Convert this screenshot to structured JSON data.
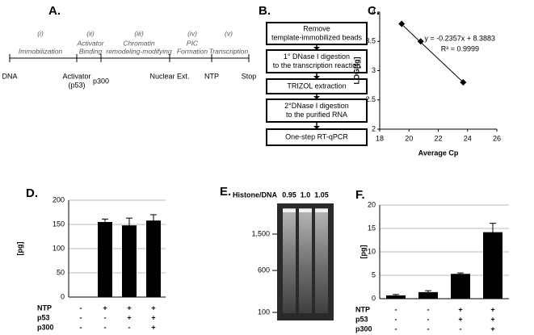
{
  "panel_a": {
    "label": "A.",
    "stages": [
      {
        "numeral": "(i)",
        "lines": [
          "Immobilization"
        ]
      },
      {
        "numeral": "(ii)",
        "lines": [
          "Activator",
          "Binding"
        ]
      },
      {
        "numeral": "(iii)",
        "lines": [
          "Chromatin",
          "remodeling-modifying"
        ]
      },
      {
        "numeral": "(iv)",
        "lines": [
          "PIC",
          "Formation"
        ]
      },
      {
        "numeral": "(v)",
        "lines": [
          "Transcription"
        ]
      }
    ],
    "steps": [
      [
        "DNA"
      ],
      [
        "Activator",
        "(p53)"
      ],
      [
        "p300"
      ],
      [
        "Nuclear Ext."
      ],
      [
        "NTP"
      ],
      [
        "Stop"
      ]
    ]
  },
  "panel_b": {
    "label": "B.",
    "boxes": [
      [
        "Remove",
        "template-immobilized beads"
      ],
      [
        "1° DNase I digestion",
        "to the transcription reaction"
      ],
      [
        "TRIZOL extraction"
      ],
      [
        "2°DNase I digestion",
        "to the purified RNA"
      ],
      [
        "One-step RT-qPCR"
      ]
    ]
  },
  "panel_e": {
    "label": "E.",
    "header": "Histone/DNA",
    "lanes": [
      "0.95",
      "1.0",
      "1.05"
    ],
    "markers": [
      "1,500",
      "600",
      "100"
    ]
  },
  "chart_data": [
    {
      "type": "scatter",
      "label": "C.",
      "x": [
        19.5,
        20.8,
        23.7
      ],
      "values": [
        3.8,
        3.5,
        2.8
      ],
      "xlim": [
        18,
        26
      ],
      "xticks": [
        18,
        20,
        22,
        24,
        26
      ],
      "ylim": [
        2,
        4
      ],
      "yticks": [
        2,
        2.5,
        3,
        3.5,
        4
      ],
      "x_label": "Average Cp",
      "y_label": "LOG[fg]",
      "fit": {
        "slope": -0.2357,
        "intercept": 8.3883
      },
      "equation": "y = -0.2357x + 8.3883",
      "r_squared": "R² = 0.9999",
      "color": "#000000"
    },
    {
      "type": "bar",
      "label": "D.",
      "values": [
        0,
        155,
        148,
        158
      ],
      "errors": [
        0,
        6,
        15,
        12
      ],
      "ylim": [
        0,
        200
      ],
      "yticks": [
        0,
        50,
        100,
        150,
        200
      ],
      "y_label": "[pg]",
      "color": "#000000",
      "grid": true,
      "conditions": [
        {
          "name": "NTP",
          "signs": [
            "-",
            "+",
            "+",
            "+"
          ]
        },
        {
          "name": "p53",
          "signs": [
            "-",
            "-",
            "+",
            "+"
          ]
        },
        {
          "name": "p300",
          "signs": [
            "-",
            "-",
            "-",
            "+"
          ]
        }
      ]
    },
    {
      "type": "bar",
      "label": "F.",
      "values": [
        0.7,
        1.4,
        5.3,
        14.2
      ],
      "errors": [
        0.2,
        0.3,
        0.2,
        1.9
      ],
      "ylim": [
        0,
        20
      ],
      "yticks": [
        0,
        5,
        10,
        15,
        20
      ],
      "y_label": "[pg]",
      "color": "#000000",
      "grid": true,
      "conditions": [
        {
          "name": "NTP",
          "signs": [
            "-",
            "-",
            "+",
            "+"
          ]
        },
        {
          "name": "p53",
          "signs": [
            "-",
            "-",
            "+",
            "+"
          ]
        },
        {
          "name": "p300",
          "signs": [
            "-",
            "-",
            "-",
            "+"
          ]
        }
      ]
    }
  ]
}
